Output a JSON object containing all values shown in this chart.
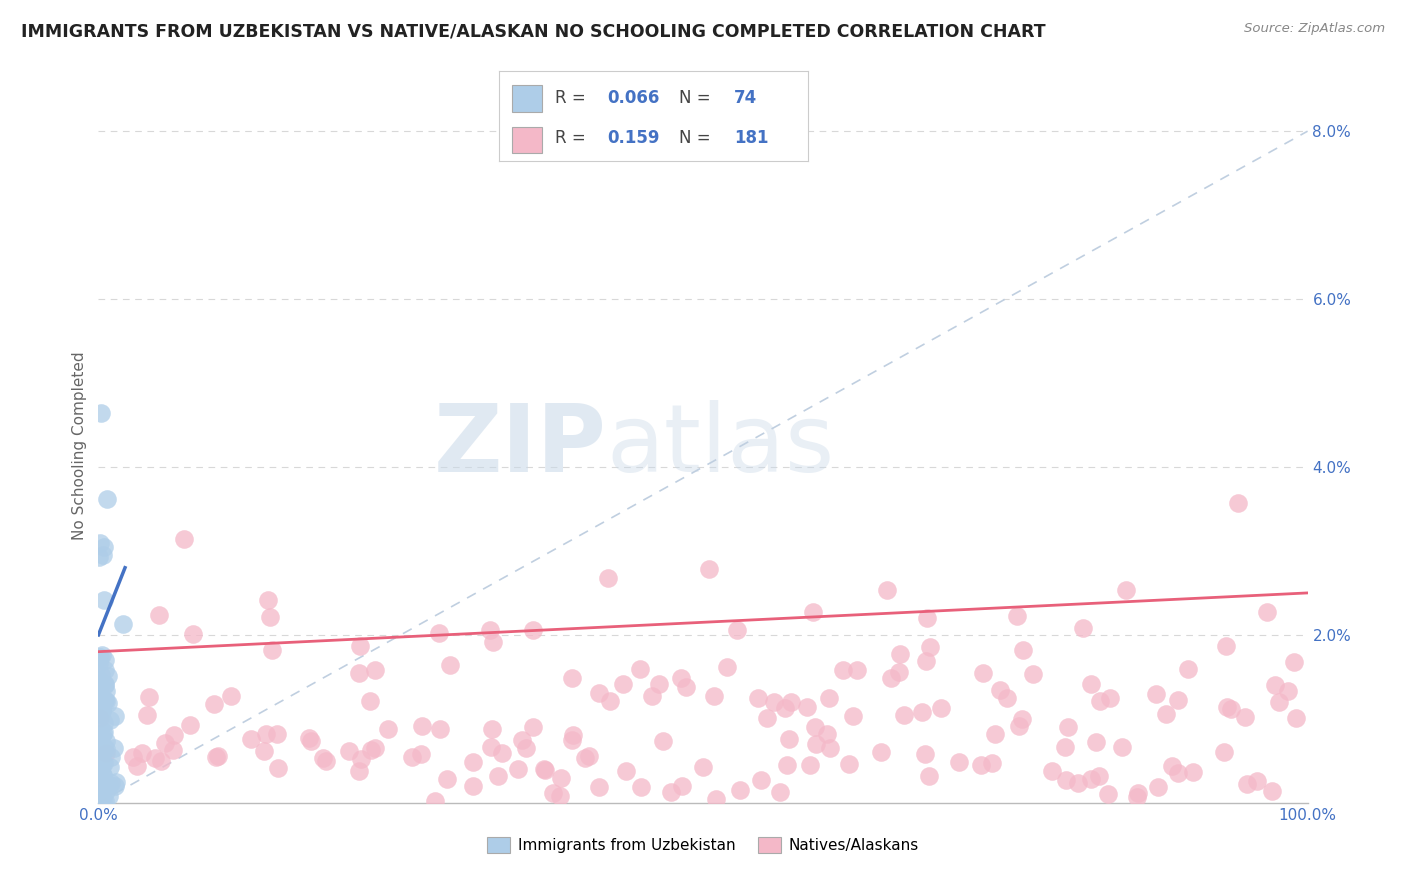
{
  "title": "IMMIGRANTS FROM UZBEKISTAN VS NATIVE/ALASKAN NO SCHOOLING COMPLETED CORRELATION CHART",
  "source_text": "Source: ZipAtlas.com",
  "ylabel": "No Schooling Completed",
  "legend_entries": [
    {
      "label": "Immigrants from Uzbekistan",
      "color": "#aecde8",
      "R": 0.066,
      "N": 74
    },
    {
      "label": "Natives/Alaskans",
      "color": "#f4b8c8",
      "R": 0.159,
      "N": 181
    }
  ],
  "blue_color": "#aecde8",
  "pink_color": "#f4b8c8",
  "blue_line_color": "#4472c4",
  "pink_line_color": "#e8607a",
  "diagonal_color": "#c0cfe0",
  "background_color": "#ffffff",
  "grid_color": "#d8d8d8",
  "xlim": [
    0.0,
    1.0
  ],
  "ylim": [
    0.0,
    0.085
  ],
  "ytick_vals": [
    0.0,
    0.02,
    0.04,
    0.06,
    0.08
  ],
  "ytick_labels": [
    "",
    "2.0%",
    "4.0%",
    "6.0%",
    "8.0%"
  ],
  "xtick_vals": [
    0.0,
    1.0
  ],
  "xtick_labels": [
    "0.0%",
    "100.0%"
  ],
  "watermark_zip": "ZIP",
  "watermark_atlas": "atlas",
  "legend_R1": "0.066",
  "legend_N1": "74",
  "legend_R2": "0.159",
  "legend_N2": "181",
  "legend_text_color": "#4472c4",
  "legend_label_color": "#444444"
}
